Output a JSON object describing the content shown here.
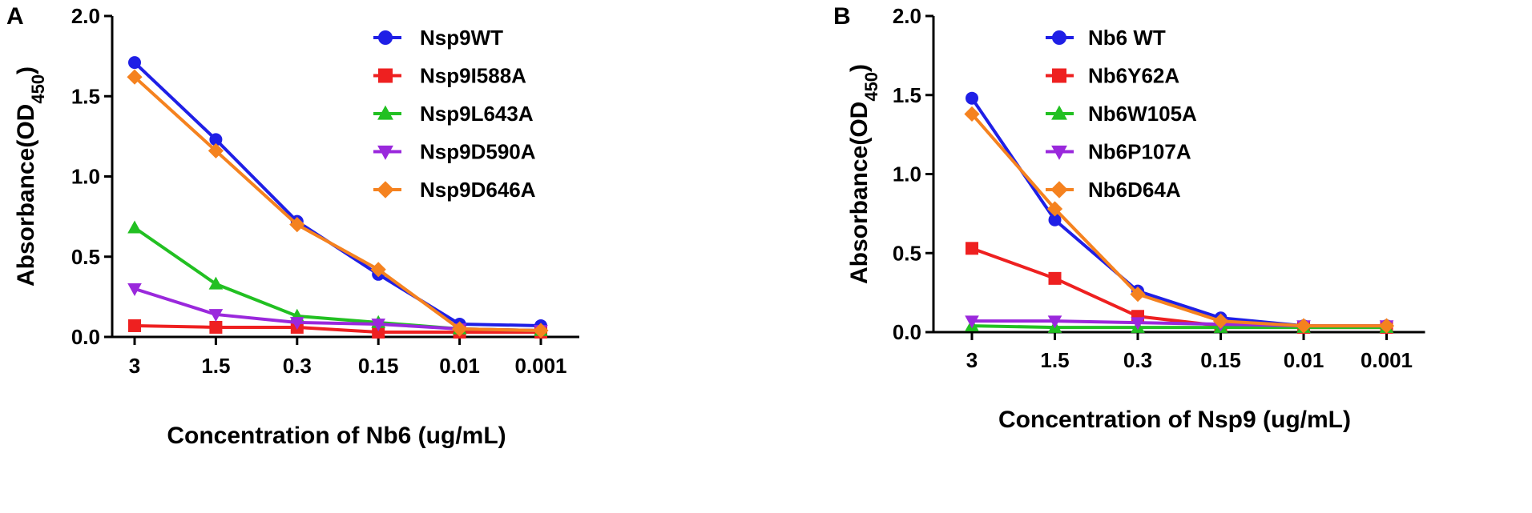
{
  "chart_data": [
    {
      "type": "line",
      "panel_label": "A",
      "title": "",
      "categories": [
        "3",
        "1.5",
        "0.3",
        "0.15",
        "0.01",
        "0.001"
      ],
      "xlabel": "Concentration of Nb6  (ug/mL)",
      "ylabel_main": "Absorbance(OD",
      "ylabel_sub": "450",
      "ylabel_close": ")",
      "ylim": [
        0,
        2.0
      ],
      "yticks": [
        0.0,
        0.5,
        1.0,
        1.5,
        2.0
      ],
      "ytick_labels": [
        "0.0",
        "0.5",
        "1.0",
        "1.5",
        "2.0"
      ],
      "grid": false,
      "legend_position": "top-right",
      "series": [
        {
          "name": "Nsp9WT",
          "color": "#1f1fe6",
          "marker": "circle",
          "values": [
            1.71,
            1.23,
            0.72,
            0.39,
            0.08,
            0.07
          ]
        },
        {
          "name": "Nsp9I588A",
          "color": "#ee2020",
          "marker": "square",
          "values": [
            0.07,
            0.06,
            0.06,
            0.03,
            0.03,
            0.03
          ]
        },
        {
          "name": "Nsp9L643A",
          "color": "#22c022",
          "marker": "triangle-up",
          "values": [
            0.68,
            0.33,
            0.13,
            0.09,
            0.05,
            0.04
          ]
        },
        {
          "name": "Nsp9D590A",
          "color": "#9a28dc",
          "marker": "triangle-down",
          "values": [
            0.3,
            0.14,
            0.09,
            0.08,
            0.05,
            0.04
          ]
        },
        {
          "name": "Nsp9D646A",
          "color": "#f5821f",
          "marker": "diamond",
          "values": [
            1.62,
            1.16,
            0.7,
            0.42,
            0.05,
            0.04
          ]
        }
      ]
    },
    {
      "type": "line",
      "panel_label": "B",
      "title": "",
      "categories": [
        "3",
        "1.5",
        "0.3",
        "0.15",
        "0.01",
        "0.001"
      ],
      "xlabel": "Concentration of Nsp9  (ug/mL)",
      "ylabel_main": "Absorbance(OD",
      "ylabel_sub": "450",
      "ylabel_close": ")",
      "ylim": [
        0,
        2.0
      ],
      "yticks": [
        0.0,
        0.5,
        1.0,
        1.5,
        2.0
      ],
      "ytick_labels": [
        "0.0",
        "0.5",
        "1.0",
        "1.5",
        "2.0"
      ],
      "grid": false,
      "legend_position": "top-right",
      "series": [
        {
          "name": "Nb6 WT",
          "color": "#1f1fe6",
          "marker": "circle",
          "values": [
            1.48,
            0.71,
            0.26,
            0.09,
            0.04,
            0.04
          ]
        },
        {
          "name": "Nb6Y62A",
          "color": "#ee2020",
          "marker": "square",
          "values": [
            0.53,
            0.34,
            0.1,
            0.04,
            0.03,
            0.03
          ]
        },
        {
          "name": "Nb6W105A",
          "color": "#22c022",
          "marker": "triangle-up",
          "values": [
            0.04,
            0.03,
            0.03,
            0.03,
            0.03,
            0.03
          ]
        },
        {
          "name": "Nb6P107A",
          "color": "#9a28dc",
          "marker": "triangle-down",
          "values": [
            0.07,
            0.07,
            0.06,
            0.05,
            0.04,
            0.04
          ]
        },
        {
          "name": "Nb6D64A",
          "color": "#f5821f",
          "marker": "diamond",
          "values": [
            1.38,
            0.78,
            0.24,
            0.07,
            0.04,
            0.04
          ]
        }
      ]
    }
  ]
}
